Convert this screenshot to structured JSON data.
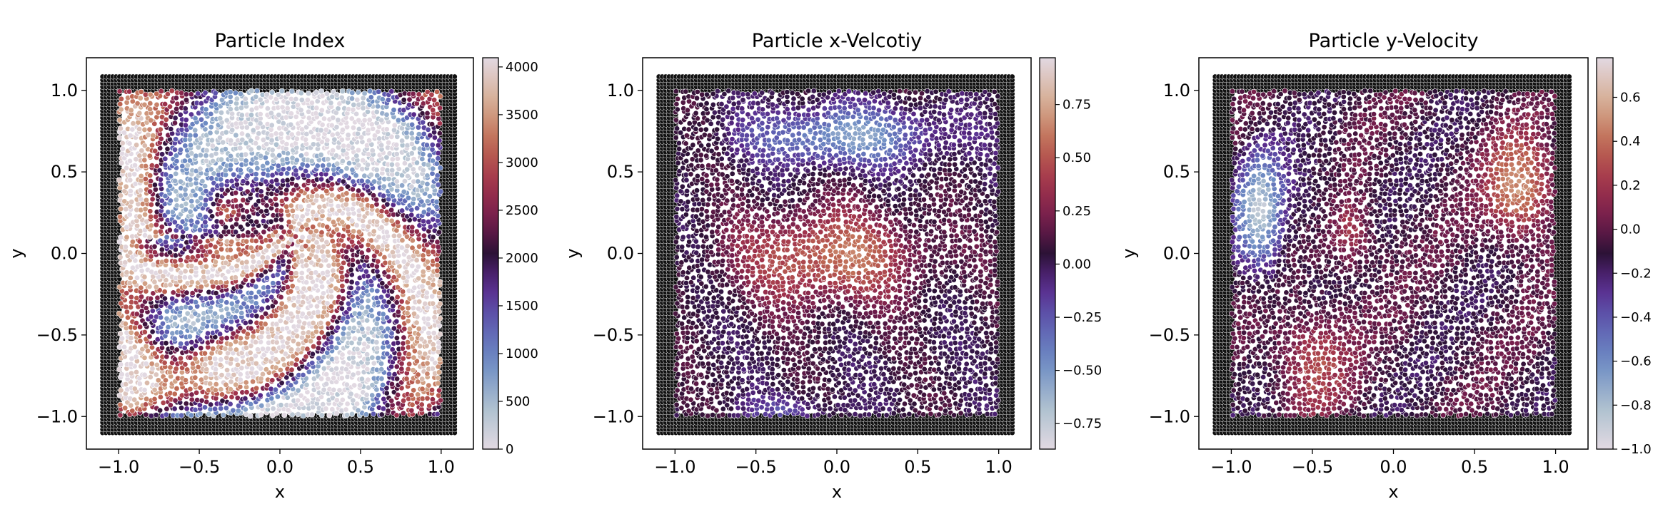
{
  "chart_data": [
    {
      "type": "scatter",
      "title": "Particle Index",
      "xlabel": "x",
      "ylabel": "y",
      "xlim": [
        -1.2,
        1.2
      ],
      "ylim": [
        -1.2,
        1.2
      ],
      "xticks": [
        -1.0,
        -0.5,
        0.0,
        0.5,
        1.0
      ],
      "xtick_labels": [
        "−1.0",
        "−0.5",
        "0.0",
        "0.5",
        "1.0"
      ],
      "yticks": [
        -1.0,
        -0.5,
        0.0,
        0.5,
        1.0
      ],
      "ytick_labels": [
        "−1.0",
        "−0.5",
        "0.0",
        "0.5",
        "1.0"
      ],
      "colormap": "twilight",
      "colorbar": {
        "range": [
          0,
          4096
        ],
        "ticks": [
          0,
          500,
          1000,
          1500,
          2000,
          2500,
          3000,
          3500,
          4000
        ],
        "tick_labels": [
          "0",
          "500",
          "1000",
          "1500",
          "2000",
          "2500",
          "3000",
          "3500",
          "4000"
        ]
      },
      "fluid_region": [
        -1.0,
        1.0
      ],
      "boundary_region": [
        -1.1,
        1.1
      ],
      "boundary_color": "#111111",
      "field": "index"
    },
    {
      "type": "scatter",
      "title": "Particle x-Velcotiy",
      "xlabel": "x",
      "ylabel": "y",
      "xlim": [
        -1.2,
        1.2
      ],
      "ylim": [
        -1.2,
        1.2
      ],
      "xticks": [
        -1.0,
        -0.5,
        0.0,
        0.5,
        1.0
      ],
      "xtick_labels": [
        "−1.0",
        "−0.5",
        "0.0",
        "0.5",
        "1.0"
      ],
      "yticks": [
        -1.0,
        -0.5,
        0.0,
        0.5,
        1.0
      ],
      "ytick_labels": [
        "−1.0",
        "−0.5",
        "0.0",
        "0.5",
        "1.0"
      ],
      "colormap": "twilight",
      "colorbar": {
        "range": [
          -0.87,
          0.97
        ],
        "ticks": [
          -0.75,
          -0.5,
          -0.25,
          0.0,
          0.25,
          0.5,
          0.75
        ],
        "tick_labels": [
          "−0.75",
          "−0.50",
          "−0.25",
          "0.00",
          "0.25",
          "0.50",
          "0.75"
        ]
      },
      "fluid_region": [
        -1.0,
        1.0
      ],
      "boundary_region": [
        -1.1,
        1.1
      ],
      "boundary_color": "#111111",
      "field": "vx"
    },
    {
      "type": "scatter",
      "title": "Particle y-Velocity",
      "xlabel": "x",
      "ylabel": "y",
      "xlim": [
        -1.2,
        1.2
      ],
      "ylim": [
        -1.2,
        1.2
      ],
      "xticks": [
        -1.0,
        -0.5,
        0.0,
        0.5,
        1.0
      ],
      "xtick_labels": [
        "−1.0",
        "−0.5",
        "0.0",
        "0.5",
        "1.0"
      ],
      "yticks": [
        -1.0,
        -0.5,
        0.0,
        0.5,
        1.0
      ],
      "ytick_labels": [
        "−1.0",
        "−0.5",
        "0.0",
        "0.5",
        "1.0"
      ],
      "colormap": "twilight",
      "colorbar": {
        "range": [
          -1.0,
          0.78
        ],
        "ticks": [
          -1.0,
          -0.8,
          -0.6,
          -0.4,
          -0.2,
          0.0,
          0.2,
          0.4,
          0.6
        ],
        "tick_labels": [
          "−1.0",
          "−0.8",
          "−0.6",
          "−0.4",
          "−0.2",
          "0.0",
          "0.2",
          "0.4",
          "0.6"
        ]
      },
      "fluid_region": [
        -1.0,
        1.0
      ],
      "boundary_region": [
        -1.1,
        1.1
      ],
      "boundary_color": "#111111",
      "field": "vy"
    }
  ]
}
